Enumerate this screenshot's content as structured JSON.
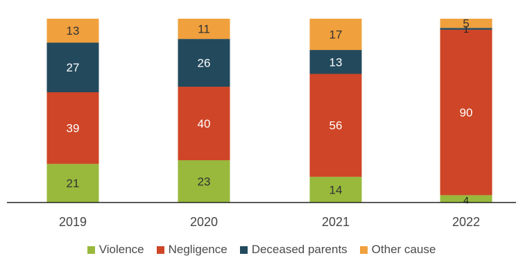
{
  "chart_data": {
    "type": "bar",
    "stacked": true,
    "categories": [
      "2019",
      "2020",
      "2021",
      "2022"
    ],
    "series": [
      {
        "name": "Violence",
        "color": "#98b93c",
        "values": [
          21,
          23,
          14,
          4
        ]
      },
      {
        "name": "Negligence",
        "color": "#cf4527",
        "values": [
          39,
          40,
          56,
          90
        ]
      },
      {
        "name": "Deceased parents",
        "color": "#23495c",
        "values": [
          27,
          26,
          13,
          1
        ]
      },
      {
        "name": "Other cause",
        "color": "#f0a03d",
        "values": [
          13,
          11,
          17,
          5
        ]
      }
    ],
    "ylim": [
      0,
      100
    ],
    "grid": false,
    "legend_position": "bottom"
  }
}
